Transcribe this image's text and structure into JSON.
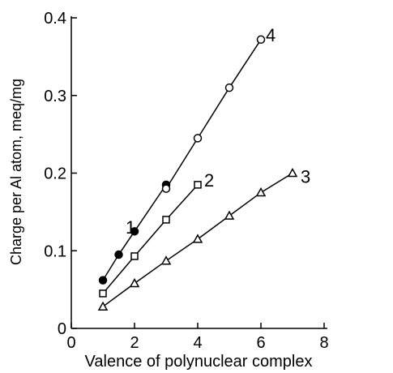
{
  "chart_data": {
    "type": "scatter",
    "xlabel": "Valence of polynuclear complex",
    "ylabel": "Charge per Al atom, meq/mg",
    "xlim": [
      0,
      8
    ],
    "ylim": [
      0,
      0.4
    ],
    "xticks": [
      0,
      2,
      4,
      6,
      8
    ],
    "yticks": [
      0,
      0.1,
      0.2,
      0.3,
      0.4
    ],
    "series": [
      {
        "name": "1",
        "color": "#000000",
        "marker": "filled-circle",
        "x": [
          1,
          1.5,
          2,
          3
        ],
        "values": [
          0.062,
          0.095,
          0.125,
          0.185
        ]
      },
      {
        "name": "2",
        "color": "#000000",
        "marker": "square",
        "x": [
          1,
          2,
          3,
          4
        ],
        "values": [
          0.045,
          0.093,
          0.14,
          0.185
        ]
      },
      {
        "name": "3",
        "color": "#000000",
        "marker": "triangle",
        "x": [
          1,
          2,
          3,
          4,
          5,
          6,
          7
        ],
        "values": [
          0.028,
          0.058,
          0.087,
          0.115,
          0.145,
          0.175,
          0.2
        ]
      },
      {
        "name": "4",
        "color": "#000000",
        "marker": "open-circle",
        "x": [
          3,
          4,
          5,
          6
        ],
        "values": [
          0.18,
          0.245,
          0.31,
          0.372
        ]
      }
    ]
  }
}
